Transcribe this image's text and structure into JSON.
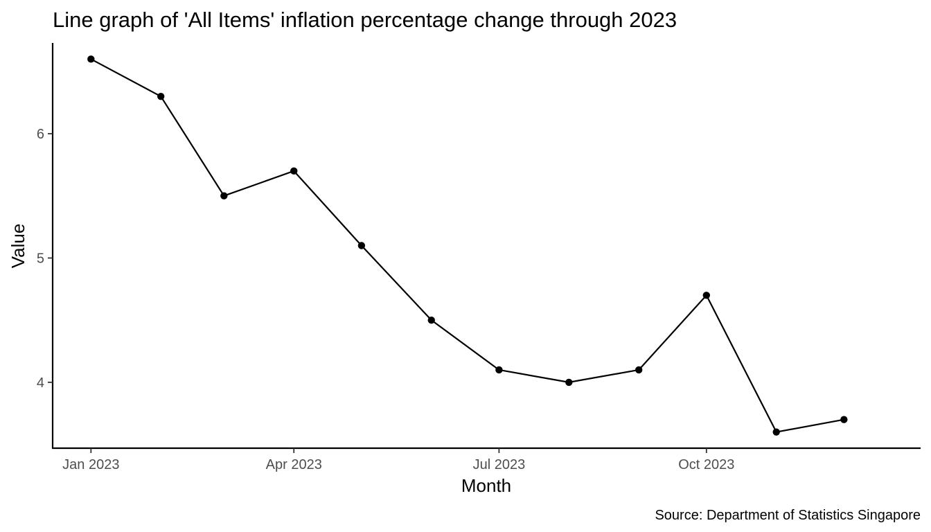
{
  "chart_data": {
    "type": "line",
    "title": "Line graph of 'All Items' inflation percentage change through 2023",
    "xlabel": "Month",
    "ylabel": "Value",
    "caption": "Source: Department of Statistics Singapore",
    "x": [
      "2023-01",
      "2023-02",
      "2023-03",
      "2023-04",
      "2023-05",
      "2023-06",
      "2023-07",
      "2023-08",
      "2023-09",
      "2023-10",
      "2023-11",
      "2023-12"
    ],
    "series": [
      {
        "values": [
          6.6,
          6.3,
          5.5,
          5.7,
          5.1,
          4.5,
          4.1,
          4.0,
          4.1,
          4.7,
          3.6,
          3.7
        ]
      }
    ],
    "x_ticks": [
      {
        "x": "2023-01",
        "label": "Jan 2023"
      },
      {
        "x": "2023-04",
        "label": "Apr 2023"
      },
      {
        "x": "2023-07",
        "label": "Jul 2023"
      },
      {
        "x": "2023-10",
        "label": "Oct 2023"
      }
    ],
    "y_ticks": [
      {
        "value": 4,
        "label": "4"
      },
      {
        "value": 5,
        "label": "5"
      },
      {
        "value": 6,
        "label": "6"
      }
    ],
    "ylim": [
      3.47,
      6.73
    ],
    "xlim": [
      "2022-12-15",
      "2024-01-04"
    ],
    "grid": false,
    "legend": "none",
    "line_color": "#000000",
    "point_color": "#000000"
  }
}
